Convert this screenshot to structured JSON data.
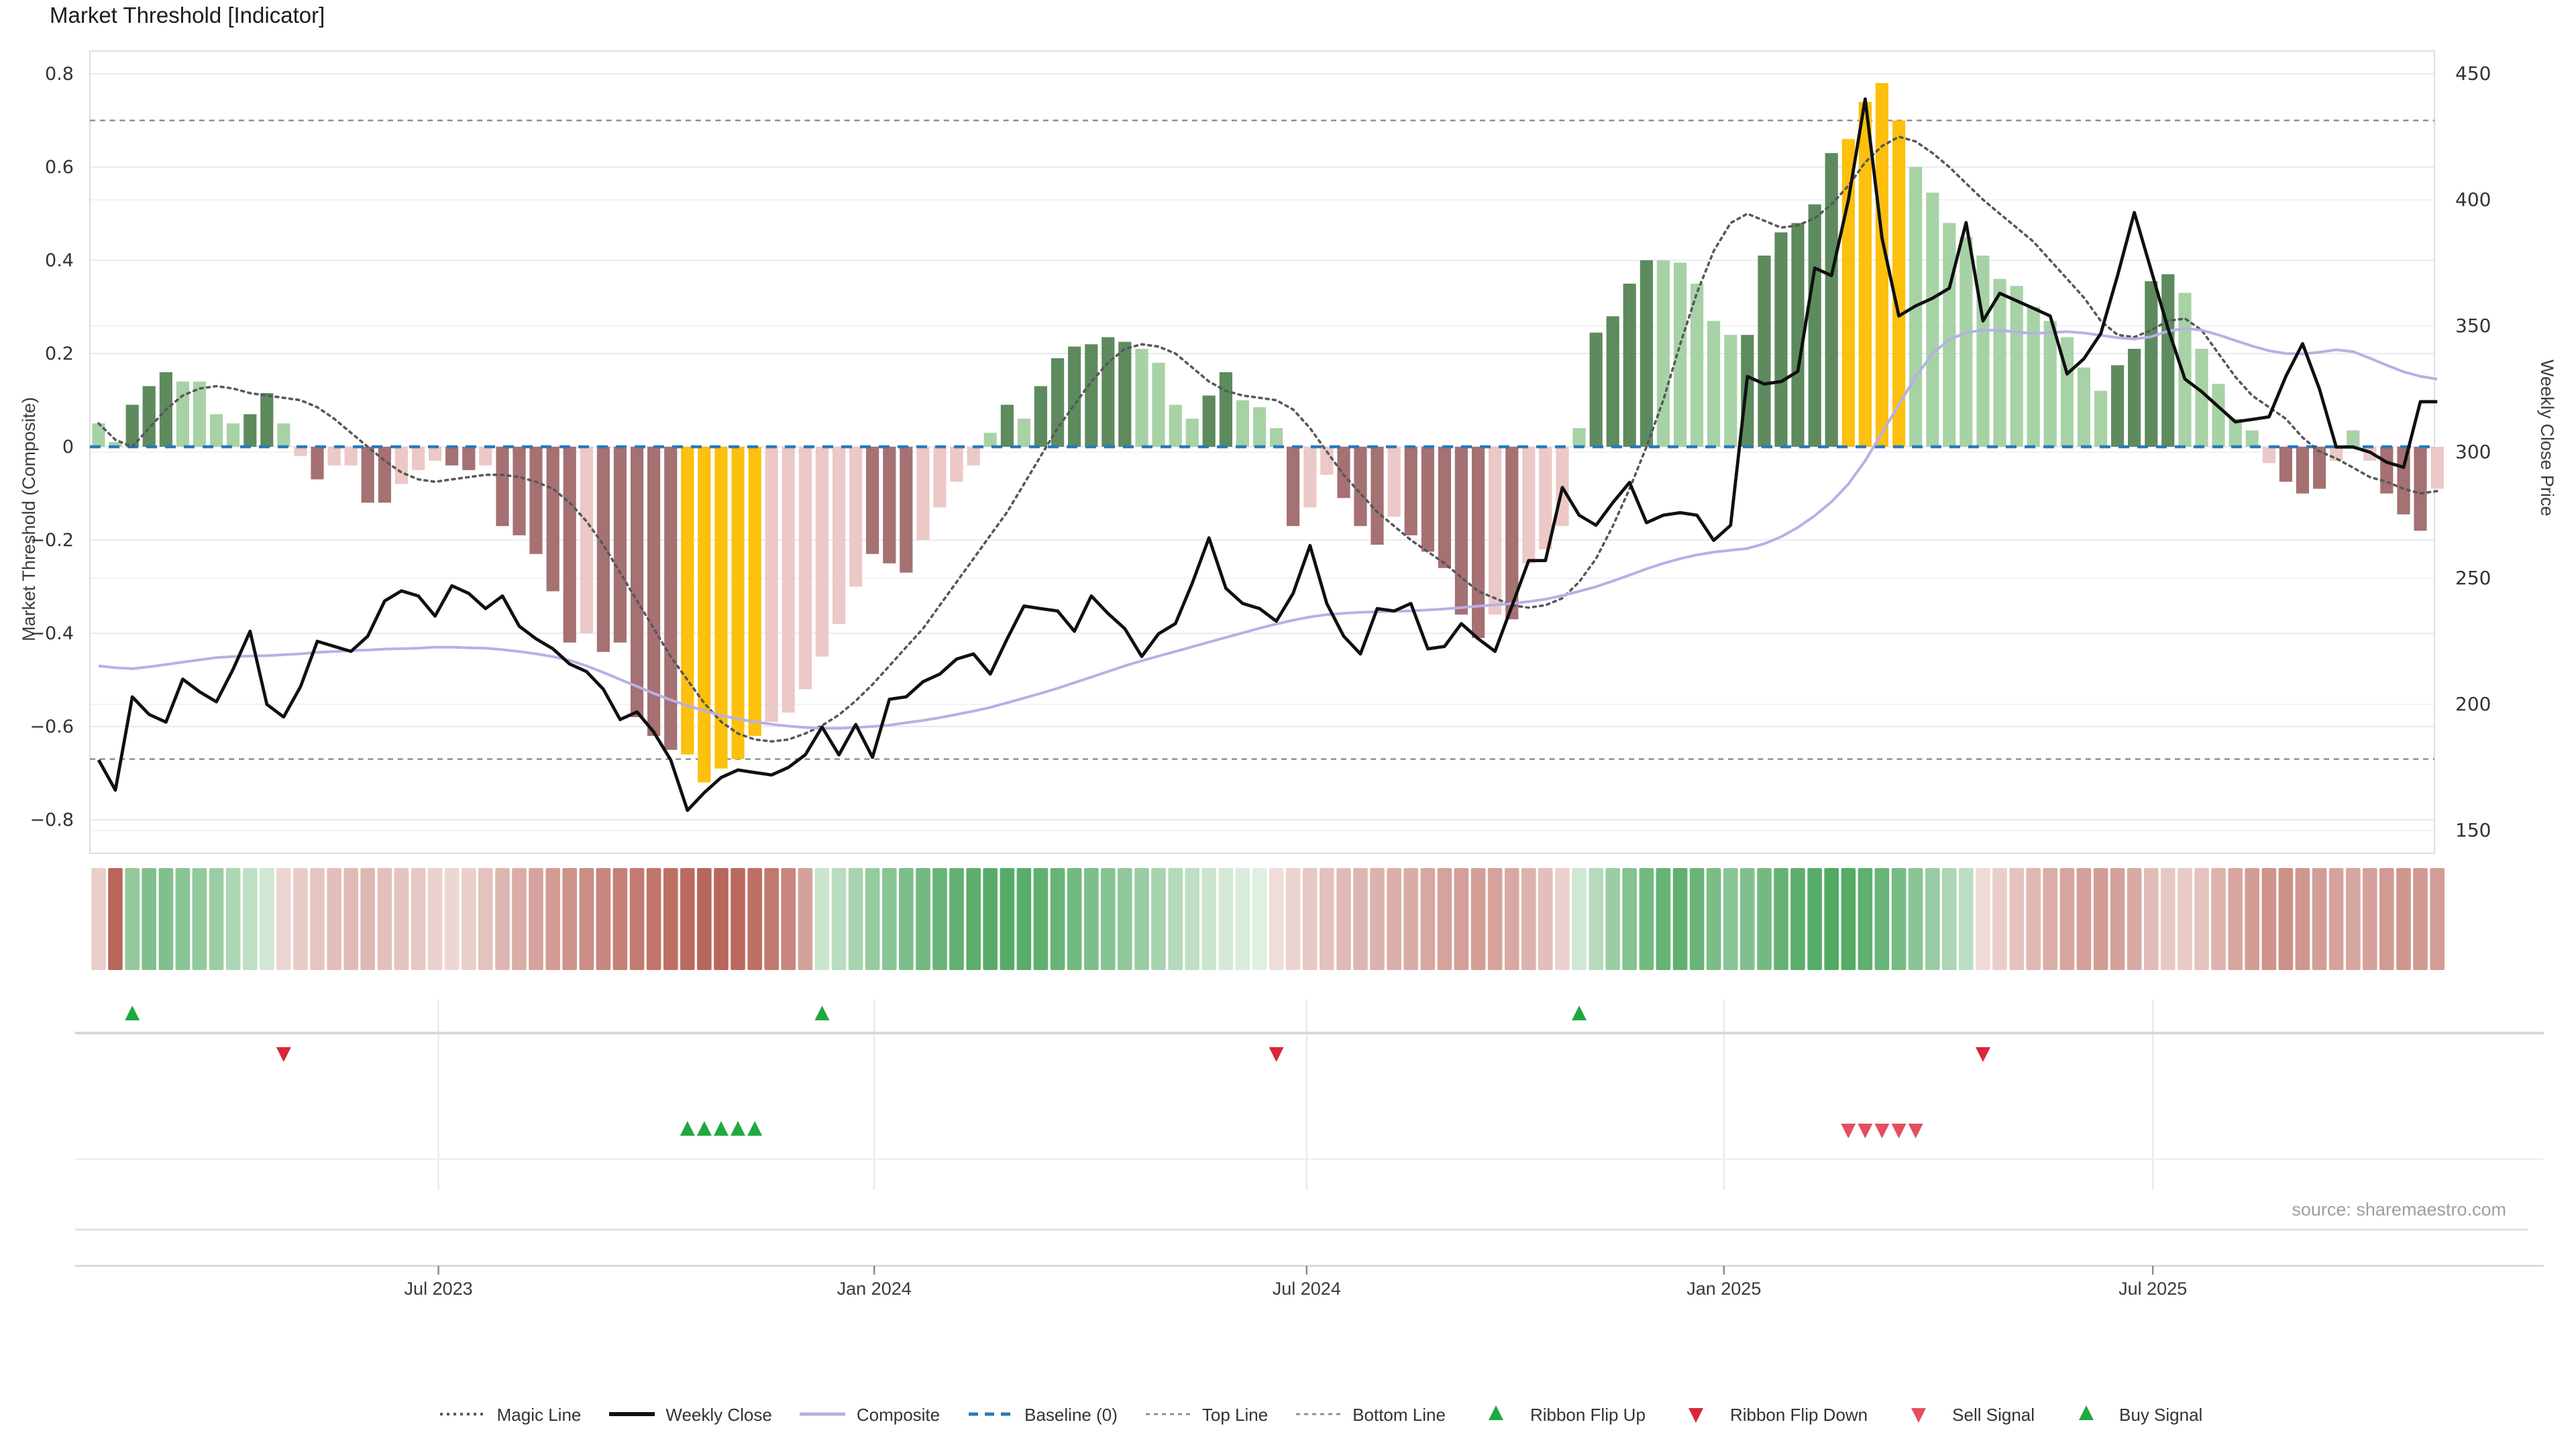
{
  "title": "Market Threshold [Indicator]",
  "source": "source: sharemaestro.com",
  "axes": {
    "left_label": "Market Threshold (Composite)",
    "right_label": "Weekly Close Price",
    "left_ticks": [
      {
        "label": "0.8",
        "v": 0.8
      },
      {
        "label": "0.6",
        "v": 0.6
      },
      {
        "label": "0.4",
        "v": 0.4
      },
      {
        "label": "0.2",
        "v": 0.2
      },
      {
        "label": "0",
        "v": 0
      },
      {
        "label": "−0.2",
        "v": -0.2
      },
      {
        "label": "−0.4",
        "v": -0.4
      },
      {
        "label": "−0.6",
        "v": -0.6
      },
      {
        "label": "−0.8",
        "v": -0.8
      }
    ],
    "right_ticks": [
      {
        "label": "450",
        "v": 450
      },
      {
        "label": "400",
        "v": 400
      },
      {
        "label": "350",
        "v": 350
      },
      {
        "label": "300",
        "v": 300
      },
      {
        "label": "250",
        "v": 250
      },
      {
        "label": "200",
        "v": 200
      },
      {
        "label": "150",
        "v": 150
      }
    ],
    "x_ticks": [
      {
        "label": "Jul 2023",
        "week": 20.2
      },
      {
        "label": "Jan 2024",
        "week": 46.1
      },
      {
        "label": "Jul 2024",
        "week": 71.8
      },
      {
        "label": "Jan 2025",
        "week": 96.6
      },
      {
        "label": "Jul 2025",
        "week": 122.1
      }
    ]
  },
  "colors": {
    "bars": {
      "dg": "#5d8b5e",
      "lg": "#a7d2a6",
      "dr": "#a57172",
      "lr": "#ecc8c6",
      "y": "#fcc00d"
    },
    "baseline": "#2a7ab9",
    "magic_line": "#58585a",
    "composite": "#b7b0e4",
    "weekly_close": "#101010",
    "top_bottom_line": "#8a8a8a",
    "flip_up": "#1fa83c",
    "flip_down": "#d62839",
    "buy": "#23a83f",
    "sell": "#e34f5f",
    "ribbon_pos_deep": "#3c9e50",
    "ribbon_pos_pale": "#e9f4ea",
    "ribbon_neg_deep": "#b2574b",
    "ribbon_neg_pale": "#f7ecea",
    "grid": "#e9e9f0",
    "grid_faint": "#f2f2f7",
    "border": "#dcdce4"
  },
  "legend": [
    {
      "label": "Magic Line",
      "kind": "line",
      "color": "#58585a",
      "width": 2,
      "dash": "2 3"
    },
    {
      "label": "Weekly Close",
      "kind": "line",
      "color": "#111111",
      "width": 3,
      "dash": ""
    },
    {
      "label": "Composite",
      "kind": "line",
      "color": "#b7b0e4",
      "width": 2.5,
      "dash": ""
    },
    {
      "label": "Baseline (0)",
      "kind": "line",
      "color": "#2a7ab9",
      "width": 2.5,
      "dash": "7 5"
    },
    {
      "label": "Top Line",
      "kind": "line",
      "color": "#8a8a8a",
      "width": 1.4,
      "dash": "3 3"
    },
    {
      "label": "Bottom Line",
      "kind": "line",
      "color": "#8a8a8a",
      "width": 1.4,
      "dash": "3 3"
    },
    {
      "label": "Ribbon Flip Up",
      "kind": "tri-up",
      "color": "#1fa83c"
    },
    {
      "label": "Ribbon Flip Down",
      "kind": "tri-down",
      "color": "#d62839"
    },
    {
      "label": "Sell Signal",
      "kind": "tri-down",
      "color": "#e34f5f"
    },
    {
      "label": "Buy Signal",
      "kind": "tri-up",
      "color": "#23a83f"
    }
  ],
  "chart_data": {
    "type": "bar+line",
    "x_unit": "weekly (Feb 2023 – Nov 2025)",
    "n": 140,
    "ylim_left": [
      -0.8,
      0.8
    ],
    "ylim_right": [
      150,
      450
    ],
    "top_line": 0.7,
    "bottom_line": -0.67,
    "baseline": 0,
    "threshold": {
      "values": [
        0.05,
        0.01,
        0.09,
        0.13,
        0.16,
        0.14,
        0.14,
        0.07,
        0.05,
        0.07,
        0.115,
        0.05,
        -0.02,
        -0.07,
        -0.04,
        -0.04,
        -0.12,
        -0.12,
        -0.08,
        -0.05,
        -0.03,
        -0.04,
        -0.05,
        -0.04,
        -0.17,
        -0.19,
        -0.23,
        -0.31,
        -0.42,
        -0.4,
        -0.44,
        -0.42,
        -0.58,
        -0.62,
        -0.65,
        -0.66,
        -0.72,
        -0.69,
        -0.67,
        -0.62,
        -0.59,
        -0.57,
        -0.52,
        -0.45,
        -0.38,
        -0.3,
        -0.23,
        -0.25,
        -0.27,
        -0.2,
        -0.13,
        -0.075,
        -0.04,
        0.03,
        0.09,
        0.06,
        0.13,
        0.19,
        0.215,
        0.22,
        0.235,
        0.225,
        0.21,
        0.18,
        0.09,
        0.06,
        0.11,
        0.16,
        0.1,
        0.085,
        0.04,
        -0.17,
        -0.13,
        -0.06,
        -0.11,
        -0.17,
        -0.21,
        -0.15,
        -0.19,
        -0.225,
        -0.26,
        -0.36,
        -0.41,
        -0.36,
        -0.37,
        -0.25,
        -0.22,
        -0.17,
        0.04,
        0.245,
        0.28,
        0.35,
        0.4,
        0.4,
        0.395,
        0.35,
        0.27,
        0.24,
        0.24,
        0.41,
        0.46,
        0.48,
        0.52,
        0.63,
        0.66,
        0.74,
        0.78,
        0.7,
        0.6,
        0.545,
        0.48,
        0.45,
        0.41,
        0.36,
        0.345,
        0.3,
        0.27,
        0.235,
        0.17,
        0.12,
        0.175,
        0.21,
        0.355,
        0.37,
        0.33,
        0.21,
        0.135,
        0.06,
        0.035,
        -0.035,
        -0.075,
        -0.1,
        -0.09,
        -0.03,
        0.035,
        -0.03,
        -0.1,
        -0.145,
        -0.18,
        -0.09
      ],
      "styles": [
        "lg",
        "lg",
        "dg",
        "dg",
        "dg",
        "lg",
        "lg",
        "lg",
        "lg",
        "dg",
        "dg",
        "lg",
        "lr",
        "dr",
        "lr",
        "lr",
        "dr",
        "dr",
        "lr",
        "lr",
        "lr",
        "dr",
        "dr",
        "lr",
        "dr",
        "dr",
        "dr",
        "dr",
        "dr",
        "lr",
        "dr",
        "dr",
        "dr",
        "dr",
        "dr",
        "y",
        "y",
        "y",
        "y",
        "y",
        "lr",
        "lr",
        "lr",
        "lr",
        "lr",
        "lr",
        "dr",
        "dr",
        "dr",
        "lr",
        "lr",
        "lr",
        "lr",
        "lg",
        "dg",
        "lg",
        "dg",
        "dg",
        "dg",
        "dg",
        "dg",
        "dg",
        "lg",
        "lg",
        "lg",
        "lg",
        "dg",
        "dg",
        "lg",
        "lg",
        "lg",
        "dr",
        "lr",
        "lr",
        "dr",
        "dr",
        "dr",
        "lr",
        "dr",
        "dr",
        "dr",
        "dr",
        "dr",
        "lr",
        "dr",
        "lr",
        "lr",
        "lr",
        "lg",
        "dg",
        "dg",
        "dg",
        "dg",
        "lg",
        "lg",
        "lg",
        "lg",
        "lg",
        "dg",
        "dg",
        "dg",
        "dg",
        "dg",
        "dg",
        "y",
        "y",
        "y",
        "y",
        "lg",
        "lg",
        "lg",
        "lg",
        "lg",
        "lg",
        "lg",
        "lg",
        "lg",
        "lg",
        "lg",
        "lg",
        "dg",
        "dg",
        "dg",
        "dg",
        "lg",
        "lg",
        "lg",
        "lg",
        "lg",
        "lr",
        "dr",
        "dr",
        "dr",
        "lr",
        "lg",
        "lr",
        "dr",
        "dr",
        "dr",
        "lr"
      ]
    },
    "weekly_close": [
      178,
      166,
      203,
      196,
      193,
      210,
      205,
      201,
      214,
      229,
      200,
      195,
      207,
      225,
      223,
      221,
      227,
      241,
      245,
      243,
      235,
      247,
      244,
      238,
      243,
      231,
      226,
      222,
      216,
      213,
      206,
      194,
      197,
      189,
      178,
      158,
      165,
      171,
      174,
      173,
      172,
      175,
      180,
      191,
      180,
      192,
      179,
      202,
      203,
      209,
      212,
      218,
      220,
      212,
      226,
      239,
      238,
      237,
      229,
      243,
      236,
      230,
      219,
      228,
      232,
      248,
      266,
      246,
      240,
      238,
      233,
      244,
      263,
      240,
      227,
      220,
      238,
      237,
      240,
      222,
      223,
      232,
      226,
      221,
      239,
      257,
      257,
      286,
      275,
      271,
      280,
      288,
      272,
      275,
      276,
      275,
      265,
      271,
      330,
      327,
      328,
      332,
      373,
      370,
      400,
      440,
      385,
      354,
      358,
      361,
      365,
      391,
      352,
      363,
      360,
      357,
      354,
      331,
      337,
      347,
      370,
      395,
      372,
      349,
      329,
      324,
      318,
      312,
      313,
      314,
      330,
      343,
      325,
      302,
      302,
      300,
      296,
      294,
      320,
      320
    ],
    "composite": [
      -0.47,
      -0.474,
      -0.476,
      -0.472,
      -0.467,
      -0.462,
      -0.457,
      -0.452,
      -0.45,
      -0.449,
      -0.448,
      -0.446,
      -0.444,
      -0.441,
      -0.439,
      -0.437,
      -0.436,
      -0.434,
      -0.433,
      -0.432,
      -0.43,
      -0.43,
      -0.431,
      -0.432,
      -0.435,
      -0.439,
      -0.444,
      -0.45,
      -0.458,
      -0.47,
      -0.484,
      -0.499,
      -0.514,
      -0.529,
      -0.543,
      -0.555,
      -0.566,
      -0.576,
      -0.584,
      -0.59,
      -0.595,
      -0.599,
      -0.602,
      -0.604,
      -0.604,
      -0.602,
      -0.6,
      -0.597,
      -0.592,
      -0.587,
      -0.581,
      -0.574,
      -0.567,
      -0.559,
      -0.549,
      -0.539,
      -0.529,
      -0.518,
      -0.506,
      -0.494,
      -0.482,
      -0.47,
      -0.459,
      -0.449,
      -0.439,
      -0.429,
      -0.419,
      -0.409,
      -0.399,
      -0.389,
      -0.38,
      -0.372,
      -0.365,
      -0.36,
      -0.357,
      -0.355,
      -0.354,
      -0.353,
      -0.352,
      -0.35,
      -0.348,
      -0.345,
      -0.342,
      -0.339,
      -0.336,
      -0.332,
      -0.327,
      -0.319,
      -0.31,
      -0.3,
      -0.288,
      -0.275,
      -0.262,
      -0.25,
      -0.24,
      -0.232,
      -0.226,
      -0.222,
      -0.218,
      -0.208,
      -0.193,
      -0.173,
      -0.148,
      -0.118,
      -0.08,
      -0.03,
      0.03,
      0.09,
      0.15,
      0.2,
      0.23,
      0.245,
      0.25,
      0.25,
      0.246,
      0.243,
      0.245,
      0.247,
      0.244,
      0.239,
      0.234,
      0.231,
      0.236,
      0.248,
      0.254,
      0.25,
      0.24,
      0.228,
      0.216,
      0.206,
      0.2,
      0.199,
      0.203,
      0.208,
      0.204,
      0.19,
      0.175,
      0.161,
      0.151,
      0.145
    ],
    "magic_line": [
      0.05,
      0.015,
      0.0,
      0.04,
      0.08,
      0.11,
      0.125,
      0.13,
      0.125,
      0.115,
      0.11,
      0.105,
      0.1,
      0.085,
      0.06,
      0.03,
      0.0,
      -0.03,
      -0.055,
      -0.07,
      -0.075,
      -0.07,
      -0.065,
      -0.06,
      -0.06,
      -0.065,
      -0.075,
      -0.09,
      -0.12,
      -0.16,
      -0.21,
      -0.27,
      -0.33,
      -0.39,
      -0.45,
      -0.5,
      -0.55,
      -0.59,
      -0.615,
      -0.628,
      -0.632,
      -0.628,
      -0.615,
      -0.598,
      -0.575,
      -0.545,
      -0.51,
      -0.47,
      -0.43,
      -0.39,
      -0.34,
      -0.29,
      -0.24,
      -0.19,
      -0.14,
      -0.08,
      -0.02,
      0.04,
      0.09,
      0.14,
      0.18,
      0.21,
      0.22,
      0.215,
      0.2,
      0.17,
      0.14,
      0.12,
      0.11,
      0.105,
      0.1,
      0.08,
      0.04,
      -0.01,
      -0.06,
      -0.1,
      -0.14,
      -0.17,
      -0.2,
      -0.225,
      -0.25,
      -0.28,
      -0.31,
      -0.325,
      -0.34,
      -0.345,
      -0.34,
      -0.325,
      -0.29,
      -0.24,
      -0.17,
      -0.09,
      0.0,
      0.1,
      0.22,
      0.33,
      0.42,
      0.48,
      0.5,
      0.485,
      0.47,
      0.475,
      0.49,
      0.52,
      0.56,
      0.61,
      0.645,
      0.665,
      0.655,
      0.63,
      0.6,
      0.565,
      0.53,
      0.5,
      0.47,
      0.44,
      0.4,
      0.36,
      0.32,
      0.27,
      0.24,
      0.235,
      0.25,
      0.27,
      0.275,
      0.25,
      0.2,
      0.15,
      0.11,
      0.085,
      0.06,
      0.02,
      -0.01,
      -0.025,
      -0.045,
      -0.065,
      -0.075,
      -0.09,
      -0.1,
      -0.095
    ],
    "ribbon": [
      -0.2,
      -0.9,
      0.5,
      0.6,
      0.6,
      0.55,
      0.5,
      0.45,
      0.35,
      0.25,
      0.15,
      -0.15,
      -0.22,
      -0.26,
      -0.3,
      -0.33,
      -0.35,
      -0.3,
      -0.27,
      -0.24,
      -0.18,
      -0.15,
      -0.2,
      -0.28,
      -0.36,
      -0.42,
      -0.48,
      -0.54,
      -0.6,
      -0.64,
      -0.68,
      -0.72,
      -0.76,
      -0.8,
      -0.84,
      -0.87,
      -0.9,
      -0.9,
      -0.88,
      -0.84,
      -0.78,
      -0.68,
      -0.5,
      0.18,
      0.28,
      0.38,
      0.48,
      0.56,
      0.63,
      0.69,
      0.74,
      0.78,
      0.81,
      0.84,
      0.85,
      0.83,
      0.79,
      0.74,
      0.69,
      0.63,
      0.57,
      0.51,
      0.45,
      0.38,
      0.31,
      0.24,
      0.18,
      0.13,
      0.09,
      0.06,
      -0.1,
      -0.17,
      -0.24,
      -0.29,
      -0.33,
      -0.36,
      -0.39,
      -0.41,
      -0.43,
      -0.46,
      -0.49,
      -0.51,
      -0.52,
      -0.49,
      -0.45,
      -0.39,
      -0.3,
      -0.18,
      0.15,
      0.3,
      0.45,
      0.58,
      0.68,
      0.76,
      0.8,
      0.74,
      0.64,
      0.56,
      0.6,
      0.68,
      0.76,
      0.81,
      0.84,
      0.87,
      0.85,
      0.8,
      0.74,
      0.66,
      0.56,
      0.46,
      0.36,
      0.26,
      -0.12,
      -0.2,
      -0.28,
      -0.35,
      -0.42,
      -0.47,
      -0.51,
      -0.54,
      -0.5,
      -0.44,
      -0.32,
      -0.24,
      -0.22,
      -0.28,
      -0.38,
      -0.47,
      -0.54,
      -0.59,
      -0.62,
      -0.58,
      -0.53,
      -0.49,
      -0.46,
      -0.5,
      -0.55,
      -0.58,
      -0.56,
      -0.53
    ],
    "signals": {
      "flip_up_weeks": [
        2,
        43,
        88
      ],
      "flip_down_weeks": [
        11,
        70,
        112
      ],
      "buy_weeks": [
        35,
        36,
        37,
        38,
        39
      ],
      "sell_weeks": [
        104,
        105,
        106,
        107,
        108
      ]
    }
  }
}
